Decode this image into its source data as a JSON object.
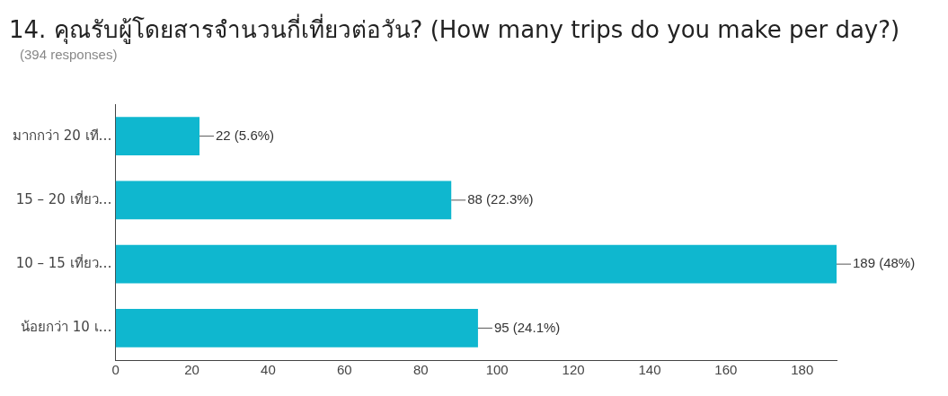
{
  "chart_data": {
    "type": "bar",
    "orientation": "horizontal",
    "title": "14. คุณรับผู้โดยสารจำนวนกี่เที่ยวต่อวัน? (How many trips do you make per day?)",
    "subtitle": "(394 responses)",
    "categories": [
      "มากกว่า 20 เที…",
      "15 – 20 เที่ยว…",
      "10 – 15 เที่ยว…",
      "น้อยกว่า 10 เ…"
    ],
    "values": [
      22,
      88,
      189,
      95
    ],
    "color": "#0fb7cf",
    "value_labels": [
      "22 (5.6%)",
      "88 (22.3%)",
      "189 (48%)",
      "95 (24.1%)"
    ],
    "xlim": [
      0,
      189
    ],
    "xticks": [
      0,
      20,
      40,
      60,
      80,
      100,
      120,
      140,
      160,
      180
    ],
    "grid": false,
    "legend": false
  }
}
